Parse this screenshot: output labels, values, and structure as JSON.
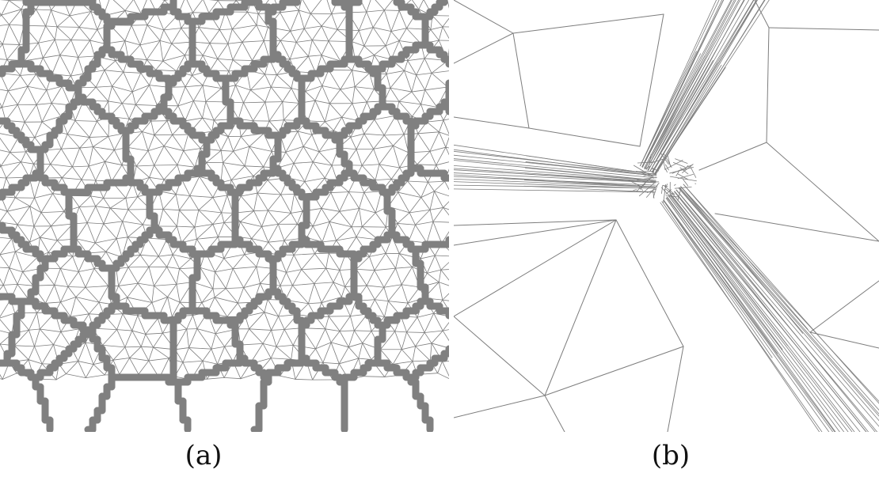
{
  "figure": {
    "panels": [
      {
        "id": "a",
        "caption": "(a)"
      },
      {
        "id": "b",
        "caption": "(b)"
      }
    ],
    "colors": {
      "mesh_line": "#7d7d7d",
      "boundary": "#808080",
      "background": "#ffffff"
    }
  }
}
